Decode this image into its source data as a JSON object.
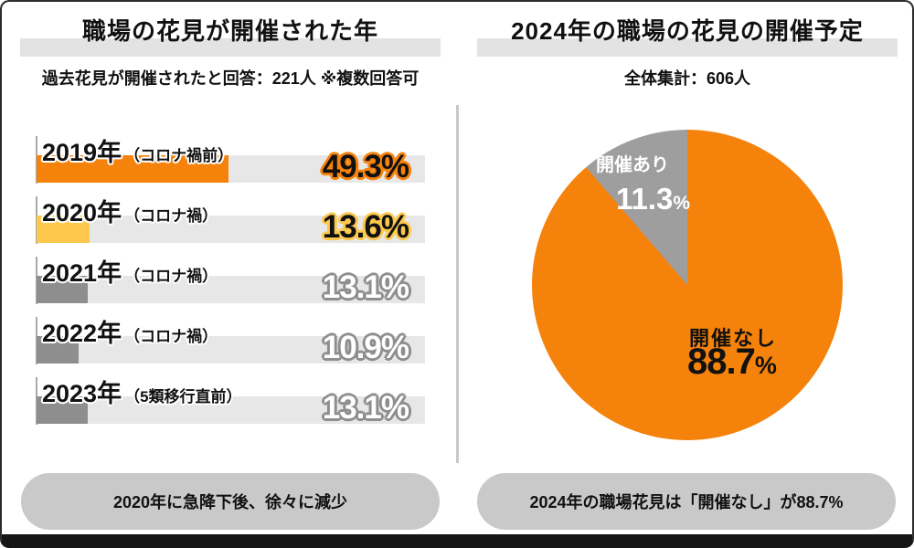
{
  "left_panel": {
    "title": "職場の花見が開催された年",
    "subtitle": "過去花見が開催されたと回答：221人 ※複数回答可",
    "note": "2020年に急降下後、徐々に減少",
    "rows": [
      {
        "year": "2019年",
        "tag": "（コロナ禍前）",
        "value": "49.3%",
        "pct": 49.3,
        "color": "#F5820A"
      },
      {
        "year": "2020年",
        "tag": "（コロナ禍）",
        "value": "13.6%",
        "pct": 13.6,
        "color": "#FDC84B"
      },
      {
        "year": "2021年",
        "tag": "（コロナ禍）",
        "value": "13.1%",
        "pct": 13.1,
        "color": "#8E8E8E"
      },
      {
        "year": "2022年",
        "tag": "（コロナ禍）",
        "value": "10.9%",
        "pct": 10.9,
        "color": "#8E8E8E"
      },
      {
        "year": "2023年",
        "tag": "（5類移行直前）",
        "value": "13.1%",
        "pct": 13.1,
        "color": "#8E8E8E"
      }
    ]
  },
  "right_panel": {
    "title": "2024年の職場の花見の開催予定",
    "subtitle": "全体集計：606人",
    "note": "2024年の職場花見は「開催なし」が88.7%",
    "pie": {
      "slices": [
        {
          "label": "開催なし",
          "display": "88.7",
          "unit": "%",
          "value": 88.7,
          "color": "#F5820A"
        },
        {
          "label": "開催あり",
          "display": "11.3",
          "unit": "%",
          "value": 11.3,
          "color": "#9E9E9E"
        }
      ]
    }
  },
  "colors": {
    "accent_orange": "#F5820A",
    "accent_yellow": "#FDC84B",
    "bar_gray": "#8E8E8E",
    "pie_gray": "#9E9E9E",
    "track_gray": "#E7E7E7",
    "band_gray": "#E3E3E3",
    "pill_gray": "#C9C9C9"
  },
  "chart_data": [
    {
      "type": "bar",
      "orientation": "horizontal",
      "title": "職場の花見が開催された年",
      "subtitle": "過去花見が開催されたと回答：221人 ※複数回答可",
      "categories": [
        "2019年（コロナ禍前）",
        "2020年（コロナ禍）",
        "2021年（コロナ禍）",
        "2022年（コロナ禍）",
        "2023年（5類移行直前）"
      ],
      "values": [
        49.3,
        13.6,
        13.1,
        10.9,
        13.1
      ],
      "unit": "%",
      "xlim": [
        0,
        100
      ],
      "bar_colors": [
        "#F5820A",
        "#FDC84B",
        "#8E8E8E",
        "#8E8E8E",
        "#8E8E8E"
      ],
      "grid": false,
      "annotation": "2020年に急降下後、徐々に減少"
    },
    {
      "type": "pie",
      "title": "2024年の職場の花見の開催予定",
      "subtitle": "全体集計：606人",
      "labels": [
        "開催なし",
        "開催あり"
      ],
      "values": [
        88.7,
        11.3
      ],
      "unit": "%",
      "colors": [
        "#F5820A",
        "#9E9E9E"
      ],
      "start_angle": "top",
      "annotation": "2024年の職場花見は「開催なし」が88.7%"
    }
  ]
}
